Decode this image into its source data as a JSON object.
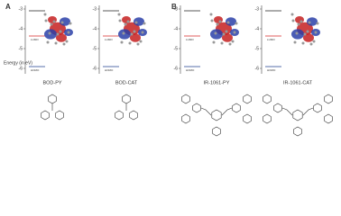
{
  "panels": [
    {
      "label": "A",
      "axis_title": "Energy (in eV)",
      "diagrams": [
        {
          "ticks": [
            "-3",
            "-4",
            "-5",
            "-6"
          ],
          "lumo": "LUMO",
          "homo": "HOMO",
          "name": "BOD-PY"
        },
        {
          "ticks": [
            "-3",
            "-4",
            "-5",
            "-6"
          ],
          "lumo": "LUMO",
          "homo": "HOMO",
          "name": "BOD-CAT"
        }
      ]
    },
    {
      "label": "B",
      "diagrams": [
        {
          "ticks": [
            "-3",
            "-4",
            "-5",
            "-6"
          ],
          "lumo": "LUMO",
          "homo": "HOMO",
          "name": "IR-1061-PY"
        },
        {
          "ticks": [
            "-3",
            "-4",
            "-5",
            "-6"
          ],
          "lumo": "LUMO",
          "homo": "HOMO",
          "name": "IR-1061-CAT"
        }
      ]
    }
  ]
}
